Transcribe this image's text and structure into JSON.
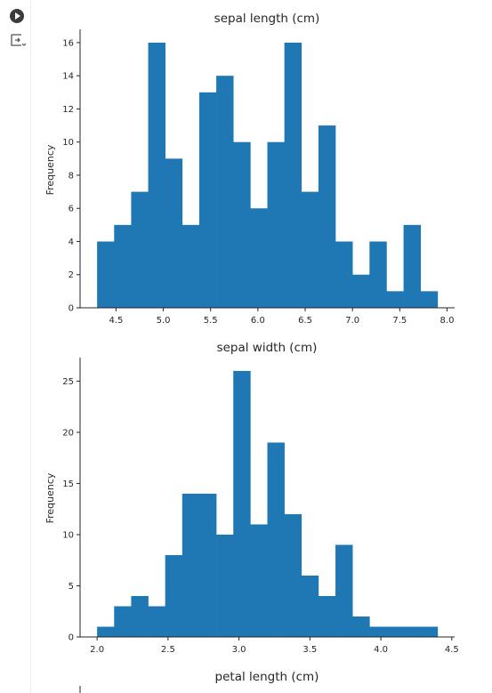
{
  "notebook": {
    "run_icon": "play-circle-icon",
    "output_icon": "output-toggle-icon"
  },
  "colors": {
    "bar": "#1f77b4",
    "axis": "#262626",
    "text": "#262626"
  },
  "chart_data": [
    {
      "type": "bar",
      "title": "sepal length (cm)",
      "xlabel": "",
      "ylabel": "Frequency",
      "xlim": [
        4.12,
        8.08
      ],
      "ylim": [
        0,
        16.8
      ],
      "bin_start": 4.3,
      "bin_width": 0.18,
      "values": [
        4,
        5,
        7,
        16,
        9,
        5,
        13,
        14,
        10,
        6,
        10,
        16,
        7,
        11,
        4,
        2,
        4,
        1,
        5,
        1
      ],
      "xticks": [
        4.5,
        5.0,
        5.5,
        6.0,
        6.5,
        7.0,
        7.5,
        8.0
      ],
      "xtick_labels": [
        "4.5",
        "5.0",
        "5.5",
        "6.0",
        "6.5",
        "7.0",
        "7.5",
        "8.0"
      ],
      "yticks": [
        0,
        2,
        4,
        6,
        8,
        10,
        12,
        14,
        16
      ],
      "ytick_labels": [
        "0",
        "2",
        "4",
        "6",
        "8",
        "10",
        "12",
        "14",
        "16"
      ]
    },
    {
      "type": "bar",
      "title": "sepal width (cm)",
      "xlabel": "",
      "ylabel": "Frequency",
      "xlim": [
        1.88,
        4.52
      ],
      "ylim": [
        0,
        27.3
      ],
      "bin_start": 2.0,
      "bin_width": 0.12,
      "values": [
        1,
        3,
        4,
        3,
        8,
        14,
        14,
        10,
        26,
        11,
        19,
        12,
        6,
        4,
        9,
        2,
        1,
        1,
        1,
        1
      ],
      "xticks": [
        2.0,
        2.5,
        3.0,
        3.5,
        4.0,
        4.5
      ],
      "xtick_labels": [
        "2.0",
        "2.5",
        "3.0",
        "3.5",
        "4.0",
        "4.5"
      ],
      "yticks": [
        0,
        5,
        10,
        15,
        20,
        25
      ],
      "ytick_labels": [
        "0",
        "5",
        "10",
        "15",
        "20",
        "25"
      ]
    },
    {
      "type": "bar",
      "title": "petal length (cm)",
      "xlabel": "",
      "ylabel": "",
      "values": []
    }
  ]
}
